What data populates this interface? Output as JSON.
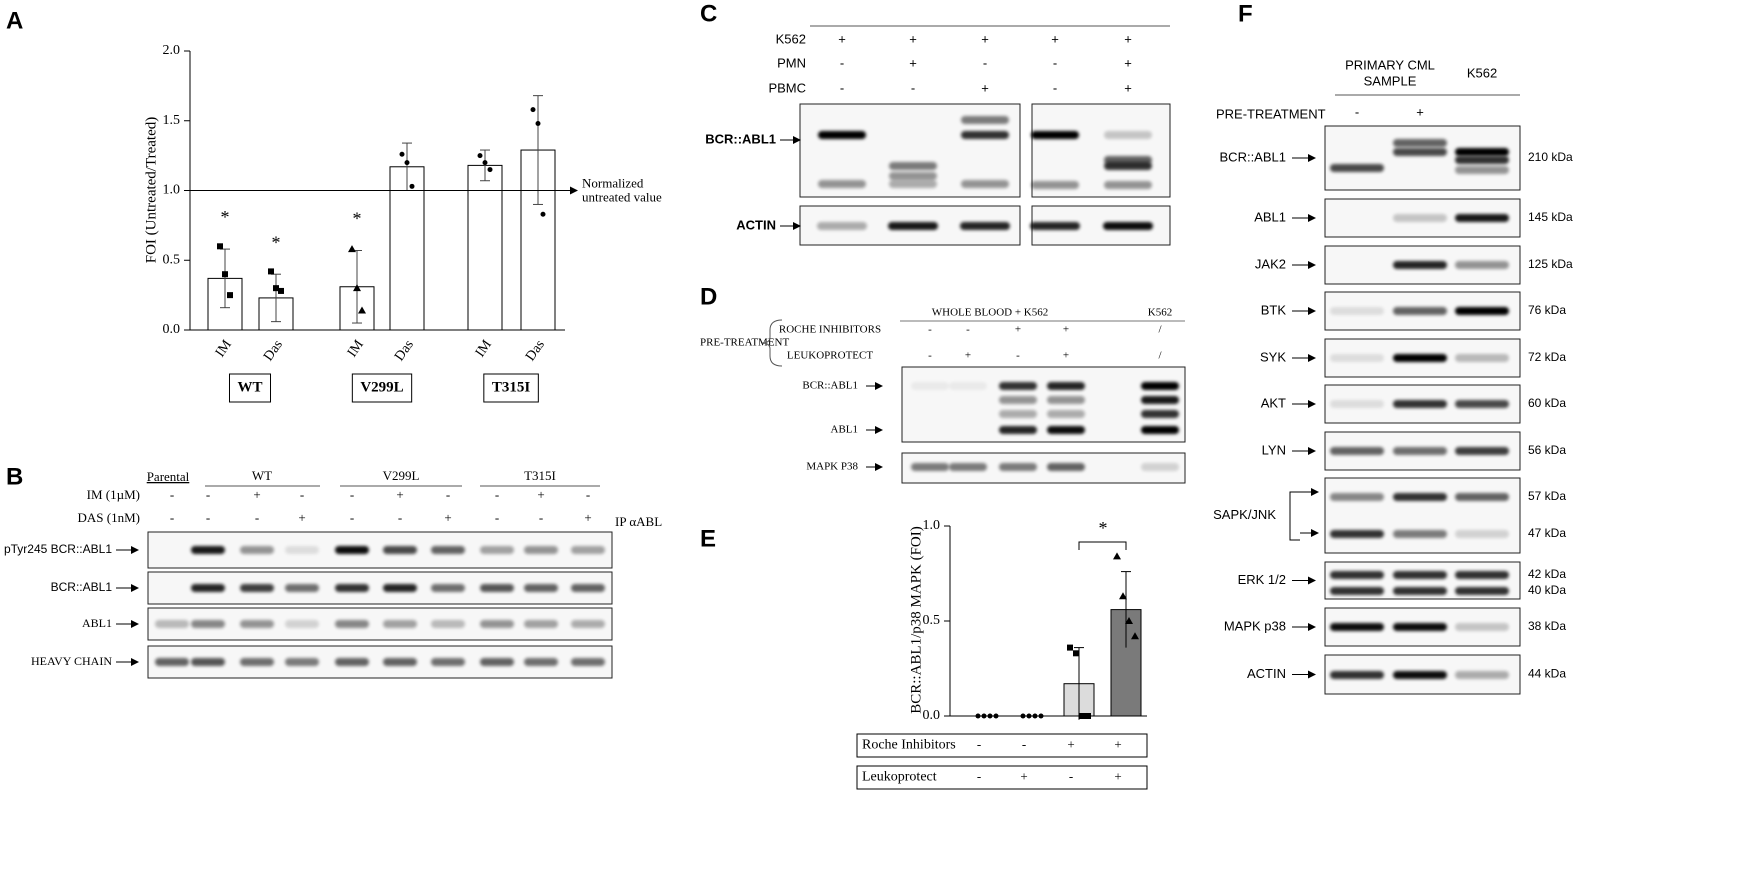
{
  "panels": [
    "A",
    "B",
    "C",
    "D",
    "E",
    "F"
  ],
  "chart_data": [
    {
      "type": "bar",
      "y_label": "FOI (Untreated/Treated)",
      "categories": [
        "IM",
        "Das",
        "IM",
        "Das",
        "IM",
        "Das"
      ],
      "groups": [
        "WT",
        "V299L",
        "T315I"
      ],
      "values": [
        0.37,
        0.23,
        0.31,
        1.17,
        1.18,
        1.29
      ],
      "errors": [
        0.21,
        0.17,
        0.26,
        0.17,
        0.11,
        0.39
      ],
      "points": [
        [
          0.6,
          0.4,
          0.25
        ],
        [
          0.42,
          0.3,
          0.28
        ],
        [
          0.58,
          0.3,
          0.14
        ],
        [
          1.26,
          1.2,
          1.03
        ],
        [
          1.25,
          1.2,
          1.15
        ],
        [
          1.58,
          1.48,
          0.83
        ]
      ],
      "significance": [
        "*",
        "*",
        "*",
        null,
        null,
        null
      ],
      "reference_line": {
        "value": 1.0,
        "label": [
          "Normalized",
          "untreated value"
        ]
      },
      "ylim": [
        0,
        2.0
      ],
      "yticks": [
        {
          "value": 0,
          "label": "0.0"
        },
        0.5,
        {
          "value": 1.0,
          "label": "1.0"
        },
        1.5,
        {
          "value": 2.0,
          "label": "2.0"
        }
      ]
    },
    {
      "type": "bar",
      "y_label": "BCR::ABL1/p38 MAPK (FOI)",
      "categories": [
        null,
        null,
        null,
        null
      ],
      "values": [
        0,
        0,
        0.17,
        0.56
      ],
      "errors": [
        0,
        0,
        0.19,
        0.2
      ],
      "points": [
        [
          0,
          0,
          0,
          0
        ],
        [
          0,
          0,
          0,
          0
        ],
        [
          0.36,
          0.33,
          0,
          0
        ],
        [
          0.84,
          0.63,
          0.5,
          0.42
        ]
      ],
      "colors": [
        "#ffffff",
        "#ffffff",
        "#dcdcdc",
        "#7a7a7a"
      ],
      "significance": "*",
      "table": [
        {
          "label": "Roche Inhibitors",
          "signs": [
            "-",
            "-",
            "+",
            "+"
          ]
        },
        {
          "label": "Leukoprotect",
          "signs": [
            "-",
            "+",
            "-",
            "+"
          ]
        }
      ],
      "ylim": [
        0,
        1.0
      ],
      "yticks": [
        {
          "value": 0,
          "label": "0.0"
        },
        0.5,
        {
          "value": 1.0,
          "label": "1.0"
        }
      ]
    }
  ],
  "panel_b": {
    "columns": [
      "Parental",
      "WT",
      "V299L",
      "T315I"
    ],
    "treatments": [
      {
        "label": "IM (1µM)",
        "signs": [
          "-",
          "-",
          "+",
          "-",
          "-",
          "+",
          "-",
          "-",
          "+",
          "-"
        ]
      },
      {
        "label": "DAS (1nM)",
        "signs": [
          "-",
          "-",
          "-",
          "+",
          "-",
          "-",
          "+",
          "-",
          "-",
          "+"
        ]
      }
    ],
    "note": "IP αABL",
    "blots": [
      "pTyr245 BCR::ABL1",
      "BCR::ABL1",
      "ABL1",
      "HEAVY CHAIN"
    ]
  },
  "panel_c": {
    "treatments": [
      {
        "label": "K562",
        "signs": [
          "+",
          "+",
          "+",
          "+",
          "+"
        ]
      },
      {
        "label": "PMN",
        "signs": [
          "-",
          "+",
          "-",
          "-",
          "+"
        ]
      },
      {
        "label": "PBMC",
        "signs": [
          "-",
          "-",
          "+",
          "-",
          "+"
        ]
      }
    ],
    "blots": [
      "BCR::ABL1",
      "ACTIN"
    ]
  },
  "panel_d": {
    "header": "WHOLE BLOOD + K562",
    "control": "K562",
    "pretreatment": "PRE-TREATMENT",
    "treatments": [
      {
        "label": "ROCHE INHIBITORS",
        "signs": [
          "-",
          "-",
          "+",
          "+",
          "/"
        ]
      },
      {
        "label": "LEUKOPROTECT",
        "signs": [
          "-",
          "+",
          "-",
          "+",
          "/"
        ]
      }
    ],
    "blots": [
      "BCR::ABL1",
      "ABL1",
      "MAPK P38"
    ]
  },
  "panel_f": {
    "columns": [
      [
        "PRIMARY CML",
        "SAMPLE"
      ],
      "K562"
    ],
    "pretreatment": {
      "label": "PRE-TREATMENT",
      "signs": [
        "-",
        "+"
      ]
    },
    "blots": [
      {
        "label": "BCR::ABL1",
        "kda": [
          "210 kDa"
        ]
      },
      {
        "label": "ABL1",
        "kda": [
          "145 kDa"
        ]
      },
      {
        "label": "JAK2",
        "kda": [
          "125 kDa"
        ]
      },
      {
        "label": "BTK",
        "kda": [
          "76 kDa"
        ]
      },
      {
        "label": "SYK",
        "kda": [
          "72 kDa"
        ]
      },
      {
        "label": "AKT",
        "kda": [
          "60 kDa"
        ]
      },
      {
        "label": "LYN",
        "kda": [
          "56 kDa"
        ]
      },
      {
        "label": "SAPK/JNK",
        "kda": [
          "57 kDa",
          "47 kDa"
        ]
      },
      {
        "label": "ERK 1/2",
        "kda": [
          "42 kDa",
          "40 kDa"
        ]
      },
      {
        "label": "MAPK p38",
        "kda": [
          "38 kDa"
        ]
      },
      {
        "label": "ACTIN",
        "kda": [
          "44 kDa"
        ]
      }
    ]
  }
}
